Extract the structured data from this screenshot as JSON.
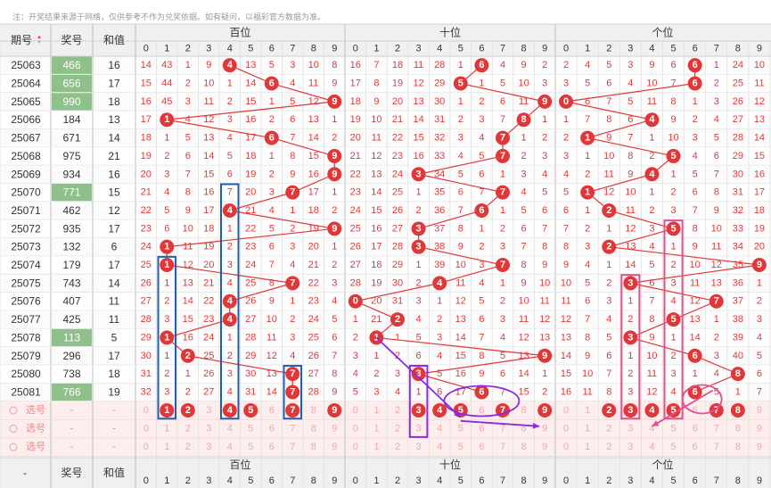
{
  "notice": "注：开奖结果来源于网络，仅供参考不作为兑奖依据。如有疑问，以福彩官方数据为准。",
  "header": {
    "period_label": "期号",
    "draw_label": "奖号",
    "sum_label": "和值",
    "sections": [
      "百位",
      "十位",
      "个位"
    ],
    "digits": [
      "0",
      "1",
      "2",
      "3",
      "4",
      "5",
      "6",
      "7",
      "8",
      "9"
    ],
    "sort_icon": "sort-arrows-icon"
  },
  "footer": {
    "dash": "-",
    "draw_label": "奖号",
    "sum_label": "和值",
    "sections": [
      "百位",
      "十位",
      "个位"
    ]
  },
  "select_rows": {
    "label": "选号",
    "dash": "-",
    "picked_row1": {
      "hundreds": [
        1,
        2,
        4,
        5,
        7,
        9
      ],
      "tens": [
        3,
        4,
        5,
        7,
        9
      ],
      "units": [
        2,
        3,
        4,
        5,
        7,
        8
      ]
    }
  },
  "colors": {
    "hit": "#e03838",
    "miss_text": "#e03838",
    "draw_highlight": "#8fbf8a",
    "select_bg": "#fdeeee",
    "header_bg": "#f0f0f0"
  },
  "chart_data": {
    "type": "table",
    "rows": [
      {
        "period": "25063",
        "draw": "466",
        "sum": 16,
        "hl": true,
        "h": [
          14,
          43,
          1,
          9,
          0,
          13,
          5,
          3,
          10,
          8
        ],
        "t": [
          16,
          7,
          18,
          11,
          28,
          1,
          0,
          4,
          9,
          2
        ],
        "u": [
          2,
          4,
          5,
          3,
          9,
          6,
          0,
          1,
          24,
          10
        ]
      },
      {
        "period": "25064",
        "draw": "656",
        "sum": 17,
        "hl": true,
        "h": [
          15,
          44,
          2,
          10,
          1,
          14,
          0,
          4,
          11,
          9
        ],
        "t": [
          17,
          8,
          19,
          12,
          29,
          0,
          1,
          5,
          10,
          3
        ],
        "u": [
          3,
          5,
          6,
          4,
          10,
          7,
          0,
          2,
          25,
          11
        ]
      },
      {
        "period": "25065",
        "draw": "990",
        "sum": 18,
        "hl": true,
        "h": [
          16,
          45,
          3,
          11,
          2,
          15,
          1,
          5,
          12,
          0
        ],
        "t": [
          18,
          9,
          20,
          13,
          30,
          1,
          2,
          6,
          11,
          0
        ],
        "u": [
          0,
          6,
          7,
          5,
          11,
          8,
          1,
          3,
          26,
          12
        ]
      },
      {
        "period": "25066",
        "draw": "184",
        "sum": 13,
        "hl": false,
        "h": [
          17,
          0,
          4,
          12,
          3,
          16,
          2,
          6,
          13,
          1
        ],
        "t": [
          19,
          10,
          21,
          14,
          31,
          2,
          3,
          7,
          0,
          1
        ],
        "u": [
          1,
          7,
          8,
          6,
          0,
          9,
          2,
          4,
          27,
          13
        ]
      },
      {
        "period": "25067",
        "draw": "671",
        "sum": 14,
        "hl": false,
        "h": [
          18,
          1,
          5,
          13,
          4,
          17,
          0,
          7,
          14,
          2
        ],
        "t": [
          20,
          11,
          22,
          15,
          32,
          3,
          4,
          0,
          1,
          2
        ],
        "u": [
          2,
          0,
          9,
          7,
          1,
          10,
          3,
          5,
          28,
          14
        ]
      },
      {
        "period": "25068",
        "draw": "975",
        "sum": 21,
        "hl": false,
        "h": [
          19,
          2,
          6,
          14,
          5,
          18,
          1,
          8,
          15,
          0
        ],
        "t": [
          21,
          12,
          23,
          16,
          33,
          4,
          5,
          0,
          2,
          3
        ],
        "u": [
          3,
          1,
          10,
          8,
          2,
          0,
          4,
          6,
          29,
          15
        ]
      },
      {
        "period": "25069",
        "draw": "934",
        "sum": 16,
        "hl": false,
        "h": [
          20,
          3,
          7,
          15,
          6,
          19,
          2,
          9,
          16,
          0
        ],
        "t": [
          22,
          13,
          24,
          0,
          34,
          5,
          6,
          1,
          3,
          4
        ],
        "u": [
          4,
          2,
          11,
          9,
          0,
          1,
          5,
          7,
          30,
          16
        ]
      },
      {
        "period": "25070",
        "draw": "771",
        "sum": 15,
        "hl": true,
        "h": [
          21,
          4,
          8,
          16,
          7,
          20,
          3,
          0,
          17,
          1
        ],
        "t": [
          23,
          14,
          25,
          1,
          35,
          6,
          7,
          0,
          4,
          5
        ],
        "u": [
          5,
          0,
          12,
          10,
          1,
          2,
          6,
          8,
          31,
          17
        ]
      },
      {
        "period": "25071",
        "draw": "462",
        "sum": 12,
        "hl": false,
        "h": [
          22,
          5,
          9,
          17,
          0,
          21,
          4,
          1,
          18,
          2
        ],
        "t": [
          24,
          15,
          26,
          2,
          36,
          7,
          0,
          1,
          5,
          6
        ],
        "u": [
          6,
          1,
          0,
          11,
          2,
          3,
          7,
          9,
          32,
          18
        ]
      },
      {
        "period": "25072",
        "draw": "935",
        "sum": 17,
        "hl": false,
        "h": [
          23,
          6,
          10,
          18,
          1,
          22,
          5,
          2,
          19,
          0
        ],
        "t": [
          25,
          16,
          27,
          0,
          37,
          8,
          1,
          2,
          6,
          7
        ],
        "u": [
          7,
          2,
          1,
          12,
          3,
          0,
          8,
          10,
          33,
          19
        ]
      },
      {
        "period": "25073",
        "draw": "132",
        "sum": 6,
        "hl": false,
        "h": [
          24,
          0,
          11,
          19,
          2,
          23,
          6,
          3,
          20,
          1
        ],
        "t": [
          26,
          17,
          28,
          0,
          38,
          9,
          2,
          3,
          7,
          8
        ],
        "u": [
          8,
          3,
          0,
          13,
          4,
          1,
          9,
          11,
          34,
          20
        ]
      },
      {
        "period": "25074",
        "draw": "179",
        "sum": 17,
        "hl": false,
        "h": [
          25,
          0,
          12,
          20,
          3,
          24,
          7,
          4,
          21,
          2
        ],
        "t": [
          27,
          18,
          29,
          1,
          39,
          10,
          3,
          0,
          8,
          9
        ],
        "u": [
          9,
          4,
          1,
          14,
          5,
          2,
          10,
          12,
          35,
          0
        ]
      },
      {
        "period": "25075",
        "draw": "743",
        "sum": 14,
        "hl": false,
        "h": [
          26,
          1,
          13,
          21,
          4,
          25,
          8,
          0,
          22,
          3
        ],
        "t": [
          28,
          19,
          30,
          2,
          0,
          11,
          4,
          1,
          9,
          10
        ],
        "u": [
          10,
          5,
          2,
          0,
          6,
          3,
          11,
          13,
          36,
          1
        ]
      },
      {
        "period": "25076",
        "draw": "407",
        "sum": 11,
        "hl": false,
        "h": [
          27,
          2,
          14,
          22,
          0,
          26,
          9,
          1,
          23,
          4
        ],
        "t": [
          0,
          20,
          31,
          3,
          1,
          12,
          5,
          2,
          10,
          11
        ],
        "u": [
          11,
          6,
          3,
          1,
          7,
          4,
          12,
          0,
          37,
          2
        ]
      },
      {
        "period": "25077",
        "draw": "425",
        "sum": 11,
        "hl": false,
        "h": [
          28,
          3,
          15,
          23,
          0,
          27,
          10,
          2,
          24,
          5
        ],
        "t": [
          1,
          21,
          0,
          4,
          2,
          13,
          6,
          3,
          11,
          12
        ],
        "u": [
          12,
          7,
          4,
          2,
          8,
          0,
          13,
          1,
          38,
          3
        ]
      },
      {
        "period": "25078",
        "draw": "113",
        "sum": 5,
        "hl": true,
        "h": [
          29,
          0,
          16,
          24,
          1,
          28,
          11,
          3,
          25,
          6
        ],
        "t": [
          2,
          0,
          1,
          5,
          3,
          14,
          7,
          4,
          12,
          13
        ],
        "u": [
          13,
          8,
          5,
          0,
          9,
          1,
          14,
          2,
          39,
          4
        ]
      },
      {
        "period": "25079",
        "draw": "296",
        "sum": 17,
        "hl": false,
        "h": [
          30,
          1,
          0,
          25,
          2,
          29,
          12,
          4,
          26,
          7
        ],
        "t": [
          3,
          1,
          2,
          6,
          4,
          15,
          8,
          5,
          13,
          0
        ],
        "u": [
          14,
          9,
          6,
          1,
          10,
          2,
          0,
          3,
          40,
          5
        ]
      },
      {
        "period": "25080",
        "draw": "738",
        "sum": 18,
        "hl": false,
        "h": [
          31,
          2,
          1,
          26,
          3,
          30,
          13,
          0,
          27,
          8
        ],
        "t": [
          4,
          2,
          3,
          0,
          5,
          16,
          9,
          6,
          14,
          1
        ],
        "u": [
          15,
          10,
          7,
          2,
          11,
          3,
          1,
          4,
          0,
          6
        ]
      },
      {
        "period": "25081",
        "draw": "766",
        "sum": 19,
        "hl": true,
        "h": [
          32,
          3,
          2,
          27,
          4,
          31,
          14,
          0,
          28,
          9
        ],
        "t": [
          5,
          3,
          4,
          1,
          6,
          17,
          0,
          7,
          15,
          2
        ],
        "u": [
          16,
          11,
          8,
          3,
          12,
          4,
          0,
          5,
          1,
          7
        ]
      }
    ]
  }
}
